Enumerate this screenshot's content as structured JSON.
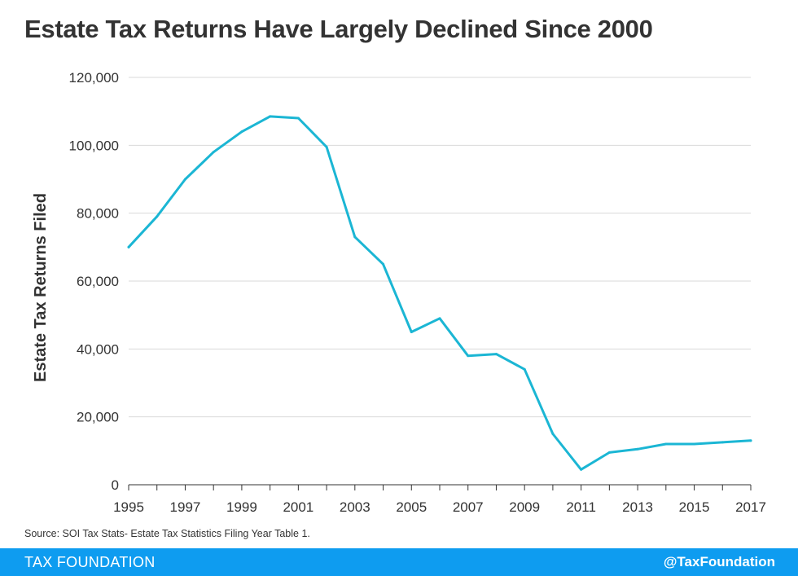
{
  "chart_data": {
    "type": "line",
    "title": "Estate Tax Returns Have Largely Declined Since 2000",
    "ylabel": "Estate Tax Returns Filed",
    "xlabel": "",
    "x": [
      1995,
      1996,
      1997,
      1998,
      1999,
      2000,
      2001,
      2002,
      2003,
      2004,
      2005,
      2006,
      2007,
      2008,
      2009,
      2010,
      2011,
      2012,
      2013,
      2014,
      2015,
      2016,
      2017
    ],
    "series": [
      {
        "values": [
          70000,
          79000,
          90000,
          98000,
          104000,
          108500,
          108000,
          99500,
          73000,
          65000,
          45000,
          49000,
          38000,
          38500,
          34000,
          15000,
          4500,
          9500,
          10500,
          12000,
          12000,
          12500,
          13000
        ],
        "color": "#1bb6d4"
      }
    ],
    "xticks": [
      "1995",
      "1997",
      "1999",
      "2001",
      "2003",
      "2005",
      "2007",
      "2009",
      "2011",
      "2013",
      "2015",
      "2017"
    ],
    "yticks": [
      "0",
      "20,000",
      "40,000",
      "60,000",
      "80,000",
      "100,000",
      "120,000"
    ],
    "xlim": [
      1995,
      2017
    ],
    "ylim": [
      0,
      120000
    ],
    "grid": "horizontal",
    "legend": "none"
  },
  "source": "Source: SOI Tax Stats- Estate Tax Statistics Filing Year Table 1.",
  "footer": {
    "brand": "TAX FOUNDATION",
    "handle": "@TaxFoundation",
    "color": "#0e9cf0"
  }
}
